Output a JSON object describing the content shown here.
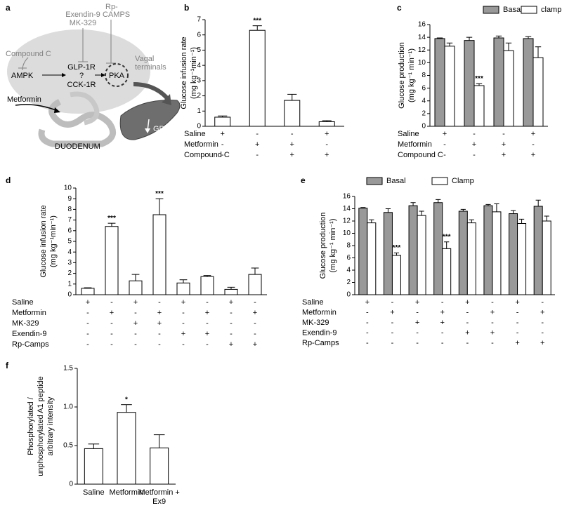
{
  "diagram": {
    "label": "a",
    "compound_c": "Compound C",
    "exendin": [
      "Exendin-9",
      "MK-329"
    ],
    "rp": [
      "Rp-",
      "CAMPS"
    ],
    "vagal": [
      "Vagal",
      "terminals"
    ],
    "ampk": "AMPK",
    "glp": "GLP-1R",
    "question": "?",
    "cck": "CCK-1R",
    "pka": "PKA",
    "metformin": "Metformin",
    "duodenum": "DUODENUM",
    "gp": "GP"
  },
  "chart_data": [
    {
      "type": "bar",
      "label": "b",
      "ylabel": [
        "Glucose infusion rate",
        "(mg kg⁻¹min⁻¹)"
      ],
      "ylim": [
        0,
        7
      ],
      "yticks": [
        0,
        1,
        2,
        3,
        4,
        5,
        6,
        7
      ],
      "series": [
        {
          "color": "#ffffff",
          "values": [
            0.6,
            6.3,
            1.7,
            0.3
          ],
          "errors": [
            0.08,
            0.3,
            0.4,
            0.07
          ],
          "significance": [
            null,
            "***",
            null,
            null
          ]
        }
      ],
      "conditions": [
        {
          "name": "Saline",
          "signs": [
            "+",
            "-",
            "-",
            "+"
          ]
        },
        {
          "name": "Metformin",
          "signs": [
            "-",
            "+",
            "+",
            "-"
          ]
        },
        {
          "name": "Compound C",
          "signs": [
            "-",
            "-",
            "+",
            "+"
          ]
        }
      ]
    },
    {
      "type": "bar",
      "label": "c",
      "ylabel": [
        "Glucose production",
        "(mg kg⁻¹ min⁻¹)"
      ],
      "ylim": [
        0,
        16
      ],
      "yticks": [
        0,
        2,
        4,
        6,
        8,
        10,
        12,
        14,
        16
      ],
      "series": [
        {
          "name": "Basal",
          "color": "#999999",
          "values": [
            13.8,
            13.5,
            13.9,
            13.8
          ],
          "errors": [
            0.1,
            0.5,
            0.3,
            0.3
          ],
          "significance": [
            null,
            null,
            null,
            null
          ]
        },
        {
          "name": "clamp",
          "color": "#ffffff",
          "values": [
            12.6,
            6.4,
            11.9,
            10.8
          ],
          "errors": [
            0.5,
            0.3,
            1.2,
            1.7
          ],
          "significance": [
            null,
            "***",
            null,
            null
          ]
        }
      ],
      "conditions": [
        {
          "name": "Saline",
          "signs": [
            "+",
            "-",
            "-",
            "+"
          ]
        },
        {
          "name": "Metformin",
          "signs": [
            "-",
            "+",
            "+",
            "-"
          ]
        },
        {
          "name": "Compound C",
          "signs": [
            "-",
            "-",
            "+",
            "+"
          ]
        }
      ]
    },
    {
      "type": "bar",
      "label": "d",
      "ylabel": [
        "Glucose infusion rate",
        "(mg kg⁻¹min⁻¹)"
      ],
      "ylim": [
        0,
        10
      ],
      "yticks": [
        0,
        1,
        2,
        3,
        4,
        5,
        6,
        7,
        8,
        9,
        10
      ],
      "series": [
        {
          "color": "#ffffff",
          "values": [
            0.6,
            6.4,
            1.3,
            7.5,
            1.1,
            1.7,
            0.5,
            1.9
          ],
          "errors": [
            0.05,
            0.3,
            0.6,
            1.5,
            0.3,
            0.1,
            0.2,
            0.6
          ],
          "significance": [
            null,
            "***",
            null,
            "***",
            null,
            null,
            null,
            null
          ]
        }
      ],
      "conditions": [
        {
          "name": "Saline",
          "signs": [
            "+",
            "-",
            "+",
            "-",
            "+",
            "-",
            "+",
            "-"
          ]
        },
        {
          "name": "Metformin",
          "signs": [
            "-",
            "+",
            "-",
            "+",
            "-",
            "+",
            "-",
            "+"
          ]
        },
        {
          "name": "MK-329",
          "signs": [
            "-",
            "-",
            "+",
            "+",
            "-",
            "-",
            "-",
            "-"
          ]
        },
        {
          "name": "Exendin-9",
          "signs": [
            "-",
            "-",
            "-",
            "-",
            "+",
            "+",
            "-",
            "-"
          ]
        },
        {
          "name": "Rp-Camps",
          "signs": [
            "-",
            "-",
            "-",
            "-",
            "-",
            "-",
            "+",
            "+"
          ]
        }
      ]
    },
    {
      "type": "bar",
      "label": "e",
      "ylabel": [
        "Glucose production",
        "(mg kg⁻¹ min⁻¹)"
      ],
      "ylim": [
        0,
        16
      ],
      "yticks": [
        0,
        2,
        4,
        6,
        8,
        10,
        12,
        14,
        16
      ],
      "series": [
        {
          "name": "Basal",
          "color": "#999999",
          "values": [
            14.1,
            13.4,
            14.5,
            15.0,
            13.6,
            14.5,
            13.2,
            14.4
          ],
          "errors": [
            0.1,
            0.6,
            0.5,
            0.5,
            0.3,
            0.2,
            0.5,
            1.0
          ],
          "significance": [
            null,
            null,
            null,
            null,
            null,
            null,
            null,
            null
          ]
        },
        {
          "name": "Clamp",
          "color": "#ffffff",
          "values": [
            11.7,
            6.4,
            12.9,
            7.5,
            11.7,
            13.5,
            11.6,
            12.0
          ],
          "errors": [
            0.5,
            0.4,
            0.7,
            1.1,
            0.5,
            1.3,
            0.7,
            0.8
          ],
          "significance": [
            null,
            "***",
            null,
            "***",
            null,
            null,
            null,
            null
          ]
        }
      ],
      "conditions": [
        {
          "name": "Saline",
          "signs": [
            "+",
            "-",
            "+",
            "-",
            "+",
            "-",
            "+",
            "-"
          ]
        },
        {
          "name": "Metformin",
          "signs": [
            "-",
            "+",
            "-",
            "+",
            "-",
            "+",
            "-",
            "+"
          ]
        },
        {
          "name": "MK-329",
          "signs": [
            "-",
            "-",
            "+",
            "+",
            "-",
            "-",
            "-",
            "-"
          ]
        },
        {
          "name": "Exendin-9",
          "signs": [
            "-",
            "-",
            "-",
            "-",
            "+",
            "+",
            "-",
            "-"
          ]
        },
        {
          "name": "Rp-Camps",
          "signs": [
            "-",
            "-",
            "-",
            "-",
            "-",
            "-",
            "+",
            "+"
          ]
        }
      ]
    },
    {
      "type": "bar",
      "label": "f",
      "ylabel": [
        "Phosphorylated /",
        "unphosphorylated A1 peptide",
        "arbitrary intensity"
      ],
      "ylim": [
        0,
        1.5
      ],
      "yticks": [
        0,
        0.5,
        {
          "value": 1,
          "label": "1.0"
        },
        1.5
      ],
      "categories": [
        "Saline",
        "Metformin",
        "Metformin + Ex9"
      ],
      "series": [
        {
          "color": "#ffffff",
          "values": [
            0.46,
            0.93,
            0.47
          ],
          "errors": [
            0.06,
            0.1,
            0.17
          ],
          "significance": [
            null,
            "*",
            null
          ]
        }
      ]
    }
  ]
}
